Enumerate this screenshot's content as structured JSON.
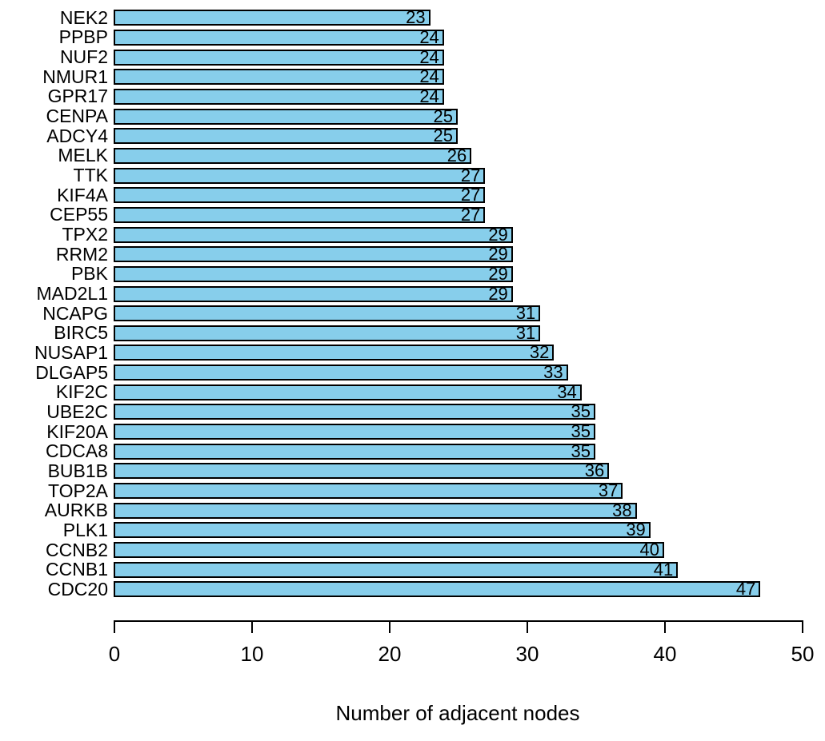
{
  "chart_data": {
    "type": "bar",
    "orientation": "horizontal",
    "title": "",
    "xlabel": "Number of adjacent nodes",
    "ylabel": "",
    "xlim": [
      0,
      50
    ],
    "xticks": [
      "0",
      "10",
      "20",
      "30",
      "40",
      "50"
    ],
    "xtick_values": [
      0,
      10,
      20,
      30,
      40,
      50
    ],
    "grid": false,
    "legend": null,
    "bar_fill": "#87CEEB",
    "bar_border": "#000000",
    "categories": [
      "NEK2",
      "PPBP",
      "NUF2",
      "NMUR1",
      "GPR17",
      "CENPA",
      "ADCY4",
      "MELK",
      "TTK",
      "KIF4A",
      "CEP55",
      "TPX2",
      "RRM2",
      "PBK",
      "MAD2L1",
      "NCAPG",
      "BIRC5",
      "NUSAP1",
      "DLGAP5",
      "KIF2C",
      "UBE2C",
      "KIF20A",
      "CDCA8",
      "BUB1B",
      "TOP2A",
      "AURKB",
      "PLK1",
      "CCNB2",
      "CCNB1",
      "CDC20"
    ],
    "values": [
      23,
      24,
      24,
      24,
      24,
      25,
      25,
      26,
      27,
      27,
      27,
      29,
      29,
      29,
      29,
      31,
      31,
      32,
      33,
      34,
      35,
      35,
      35,
      36,
      37,
      38,
      39,
      40,
      41,
      47
    ]
  }
}
